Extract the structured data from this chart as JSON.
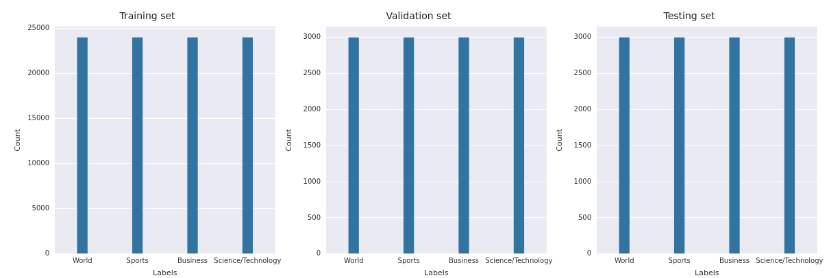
{
  "chart_data": [
    {
      "type": "bar",
      "title": "Training set",
      "xlabel": "Labels",
      "ylabel": "Count",
      "categories": [
        "World",
        "Sports",
        "Business",
        "Science/Technology"
      ],
      "values": [
        24000,
        24000,
        24000,
        24000
      ],
      "color": "#3274a1",
      "ylim": [
        0,
        25200
      ],
      "yticks": [
        0,
        5000,
        10000,
        15000,
        20000,
        25000
      ],
      "grid": "y"
    },
    {
      "type": "bar",
      "title": "Validation set",
      "xlabel": "Labels",
      "ylabel": "Count",
      "categories": [
        "World",
        "Sports",
        "Business",
        "Science/Technology"
      ],
      "values": [
        3000,
        3000,
        3000,
        3000
      ],
      "color": "#3274a1",
      "ylim": [
        0,
        3150
      ],
      "yticks": [
        0,
        500,
        1000,
        1500,
        2000,
        2500,
        3000
      ],
      "grid": "y"
    },
    {
      "type": "bar",
      "title": "Testing set",
      "xlabel": "Labels",
      "ylabel": "Count",
      "categories": [
        "World",
        "Sports",
        "Business",
        "Science/Technology"
      ],
      "values": [
        3000,
        3000,
        3000,
        3000
      ],
      "color": "#3274a1",
      "ylim": [
        0,
        3150
      ],
      "yticks": [
        0,
        500,
        1000,
        1500,
        2000,
        2500,
        3000
      ],
      "grid": "y"
    }
  ]
}
